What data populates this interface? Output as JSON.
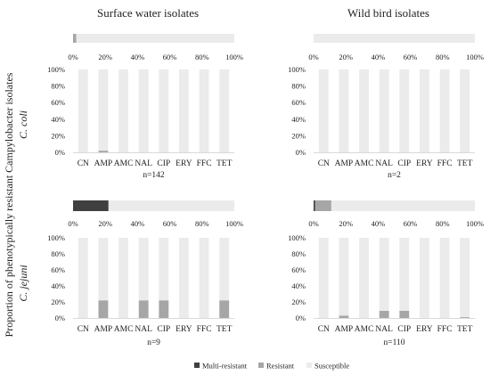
{
  "column_titles": [
    "Surface water isolates",
    "Wild bird isolates"
  ],
  "row_labels": [
    "C. coli",
    "C. jejuni"
  ],
  "y_axis_label": "Proportion of phenotypically resistant Campylobacter isolates",
  "legend": {
    "placement": "bottom-center",
    "items": [
      {
        "name": "Multi-resistant",
        "color": "#404040"
      },
      {
        "name": "Resistant",
        "color": "#a6a6a6"
      },
      {
        "name": "Susceptible",
        "color": "#ebebeb"
      }
    ]
  },
  "chart_data": [
    {
      "type": "bar",
      "stacked": true,
      "orientation": "horizontal",
      "column": "Surface water isolates",
      "row": "C. coli",
      "xlim": [
        0,
        100
      ],
      "ticks": [
        "0%",
        "20%",
        "40%",
        "60%",
        "80%",
        "100%"
      ],
      "series": [
        {
          "name": "Multi-resistant",
          "values": [
            0
          ]
        },
        {
          "name": "Resistant",
          "values": [
            2
          ]
        },
        {
          "name": "Susceptible",
          "values": [
            98
          ]
        }
      ]
    },
    {
      "type": "bar",
      "stacked": true,
      "column": "Surface water isolates",
      "row": "C. coli",
      "n_label": "n=142",
      "categories": [
        "CN",
        "AMP",
        "AMC",
        "NAL",
        "CIP",
        "ERY",
        "FFC",
        "TET"
      ],
      "ylim": [
        0,
        100
      ],
      "ticks": [
        "0%",
        "20%",
        "40%",
        "60%",
        "80%",
        "100%"
      ],
      "grid": false,
      "series": [
        {
          "name": "Resistant",
          "values": [
            0,
            2,
            0,
            0,
            0,
            0,
            0,
            0
          ]
        },
        {
          "name": "Susceptible",
          "values": [
            100,
            98,
            100,
            100,
            100,
            100,
            100,
            100
          ]
        }
      ]
    },
    {
      "type": "bar",
      "stacked": true,
      "orientation": "horizontal",
      "column": "Wild bird isolates",
      "row": "C. coli",
      "xlim": [
        0,
        100
      ],
      "ticks": [
        "0%",
        "20%",
        "40%",
        "60%",
        "80%",
        "100%"
      ],
      "series": [
        {
          "name": "Multi-resistant",
          "values": [
            0
          ]
        },
        {
          "name": "Resistant",
          "values": [
            0
          ]
        },
        {
          "name": "Susceptible",
          "values": [
            100
          ]
        }
      ]
    },
    {
      "type": "bar",
      "stacked": true,
      "column": "Wild bird isolates",
      "row": "C. coli",
      "n_label": "n=2",
      "categories": [
        "CN",
        "AMP",
        "AMC",
        "NAL",
        "CIP",
        "ERY",
        "FFC",
        "TET"
      ],
      "ylim": [
        0,
        100
      ],
      "ticks": [
        "0%",
        "20%",
        "40%",
        "60%",
        "80%",
        "100%"
      ],
      "grid": false,
      "series": [
        {
          "name": "Resistant",
          "values": [
            0,
            0,
            0,
            0,
            0,
            0,
            0,
            0
          ]
        },
        {
          "name": "Susceptible",
          "values": [
            100,
            100,
            100,
            100,
            100,
            100,
            100,
            100
          ]
        }
      ]
    },
    {
      "type": "bar",
      "stacked": true,
      "orientation": "horizontal",
      "column": "Surface water isolates",
      "row": "C. jejuni",
      "xlim": [
        0,
        100
      ],
      "ticks": [
        "0%",
        "20%",
        "40%",
        "60%",
        "80%",
        "100%"
      ],
      "series": [
        {
          "name": "Multi-resistant",
          "values": [
            22
          ]
        },
        {
          "name": "Resistant",
          "values": [
            0
          ]
        },
        {
          "name": "Susceptible",
          "values": [
            78
          ]
        }
      ]
    },
    {
      "type": "bar",
      "stacked": true,
      "column": "Surface water isolates",
      "row": "C. jejuni",
      "n_label": "n=9",
      "categories": [
        "CN",
        "AMP",
        "AMC",
        "NAL",
        "CIP",
        "ERY",
        "FFC",
        "TET"
      ],
      "ylim": [
        0,
        100
      ],
      "ticks": [
        "0%",
        "20%",
        "40%",
        "60%",
        "80%",
        "100%"
      ],
      "grid": false,
      "series": [
        {
          "name": "Resistant",
          "values": [
            0,
            22,
            0,
            22,
            22,
            0,
            0,
            22
          ]
        },
        {
          "name": "Susceptible",
          "values": [
            100,
            78,
            100,
            78,
            78,
            100,
            100,
            78
          ]
        }
      ]
    },
    {
      "type": "bar",
      "stacked": true,
      "orientation": "horizontal",
      "column": "Wild bird isolates",
      "row": "C. jejuni",
      "xlim": [
        0,
        100
      ],
      "ticks": [
        "0%",
        "20%",
        "40%",
        "60%",
        "80%",
        "100%"
      ],
      "series": [
        {
          "name": "Multi-resistant",
          "values": [
            1
          ]
        },
        {
          "name": "Resistant",
          "values": [
            10
          ]
        },
        {
          "name": "Susceptible",
          "values": [
            89
          ]
        }
      ]
    },
    {
      "type": "bar",
      "stacked": true,
      "column": "Wild bird isolates",
      "row": "C. jejuni",
      "n_label": "n=110",
      "categories": [
        "CN",
        "AMP",
        "AMC",
        "NAL",
        "CIP",
        "ERY",
        "FFC",
        "TET"
      ],
      "ylim": [
        0,
        100
      ],
      "ticks": [
        "0%",
        "20%",
        "40%",
        "60%",
        "80%",
        "100%"
      ],
      "grid": false,
      "series": [
        {
          "name": "Resistant",
          "values": [
            0,
            3,
            0,
            9,
            9,
            0,
            0,
            1
          ]
        },
        {
          "name": "Susceptible",
          "values": [
            100,
            97,
            100,
            91,
            91,
            100,
            100,
            99
          ]
        }
      ]
    }
  ]
}
